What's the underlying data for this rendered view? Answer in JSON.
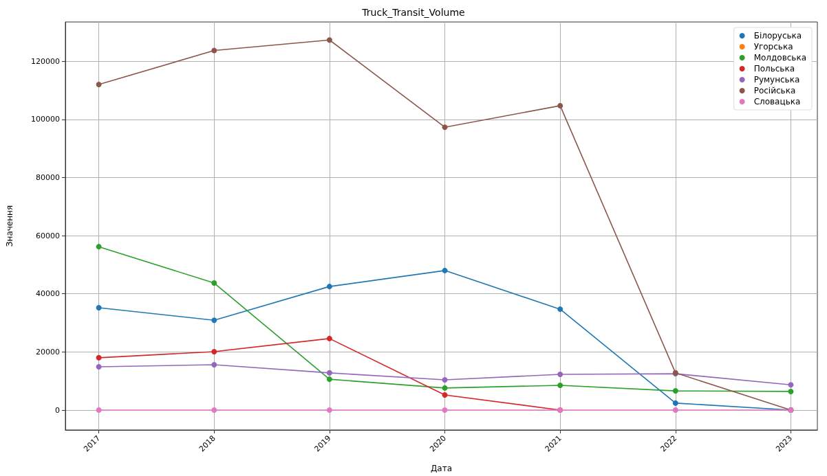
{
  "chart_data": {
    "type": "line",
    "title": "Truck_Transit_Volume",
    "xlabel": "Дата",
    "ylabel": "Значення",
    "x": [
      2017,
      2018,
      2019,
      2020,
      2021,
      2022,
      2023
    ],
    "xlim": [
      2016.71,
      2023.23
    ],
    "xticks": [
      2017,
      2018,
      2019,
      2020,
      2021,
      2022,
      2023
    ],
    "ylim": [
      -6850,
      133500
    ],
    "yticks": [
      0,
      20000,
      40000,
      60000,
      80000,
      100000,
      120000
    ],
    "grid": true,
    "legend": "top right",
    "marker": "circle",
    "line_style": "solid",
    "series": [
      {
        "name": "Білоруська",
        "color": "#1f77b4",
        "values": [
          35200,
          30900,
          42500,
          48000,
          34700,
          2400,
          0
        ]
      },
      {
        "name": "Угорська",
        "color": "#ff7f0e",
        "values": [
          null,
          null,
          null,
          null,
          null,
          null,
          null
        ]
      },
      {
        "name": "Молдовська",
        "color": "#2ca02c",
        "values": [
          56200,
          43700,
          10600,
          7600,
          8500,
          6600,
          6400
        ]
      },
      {
        "name": "Польська",
        "color": "#d62728",
        "values": [
          18000,
          20100,
          24600,
          5200,
          0,
          null,
          null
        ]
      },
      {
        "name": "Румунська",
        "color": "#9467bd",
        "values": [
          14900,
          15600,
          12800,
          10400,
          12300,
          12500,
          8700
        ]
      },
      {
        "name": "Російська",
        "color": "#8c564b",
        "values": [
          112000,
          123700,
          127300,
          97300,
          104700,
          12800,
          0
        ]
      },
      {
        "name": "Словацька",
        "color": "#e377c2",
        "values": [
          0,
          0,
          0,
          0,
          0,
          0,
          0
        ]
      }
    ]
  }
}
